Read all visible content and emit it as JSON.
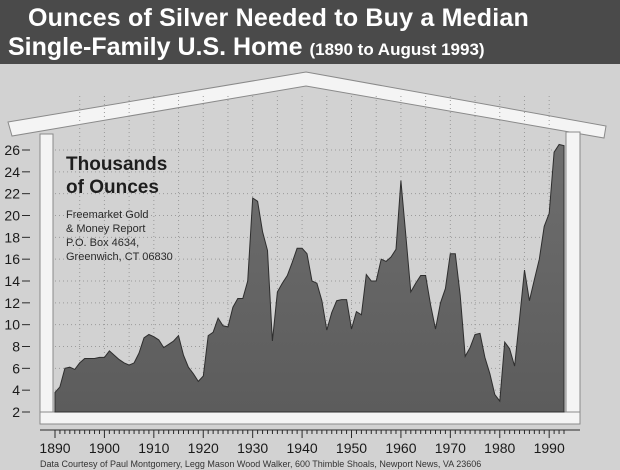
{
  "header": {
    "title_line1": "Ounces of Silver Needed to Buy a Median",
    "title_line2": "Single-Family U.S. Home",
    "title_period": "(1890 to August 1993)"
  },
  "units_label": [
    "Thousands",
    "of Ounces"
  ],
  "source_lines": [
    "Freemarket Gold",
    "& Money Report",
    "P.O. Box 4634,",
    "Greenwich, CT 06830"
  ],
  "credit": "Data Courtesy of Paul Montgomery, Legg Mason Wood Walker, 600 Thimble Shoals, Newport News, VA 23606",
  "chart_data": {
    "type": "area",
    "title": "Ounces of Silver Needed to Buy a Median Single-Family U.S. Home (1890 to August 1993)",
    "ylabel": "Thousands of Ounces",
    "xlabel": "",
    "ylim": [
      2,
      26
    ],
    "xlim": [
      1890,
      1993
    ],
    "y_ticks": [
      2,
      4,
      6,
      8,
      10,
      12,
      14,
      16,
      18,
      20,
      22,
      24,
      26
    ],
    "x_ticks": [
      1890,
      1900,
      1910,
      1920,
      1930,
      1940,
      1950,
      1960,
      1970,
      1980,
      1990
    ],
    "grid": true,
    "x": [
      1890,
      1891,
      1892,
      1893,
      1894,
      1895,
      1896,
      1897,
      1898,
      1899,
      1900,
      1901,
      1902,
      1903,
      1904,
      1905,
      1906,
      1907,
      1908,
      1909,
      1910,
      1911,
      1912,
      1913,
      1914,
      1915,
      1916,
      1917,
      1918,
      1919,
      1920,
      1921,
      1922,
      1923,
      1924,
      1925,
      1926,
      1927,
      1928,
      1929,
      1930,
      1931,
      1932,
      1933,
      1934,
      1935,
      1936,
      1937,
      1938,
      1939,
      1940,
      1941,
      1942,
      1943,
      1944,
      1945,
      1946,
      1947,
      1948,
      1949,
      1950,
      1951,
      1952,
      1953,
      1954,
      1955,
      1956,
      1957,
      1958,
      1959,
      1960,
      1961,
      1962,
      1963,
      1964,
      1965,
      1966,
      1967,
      1968,
      1969,
      1970,
      1971,
      1972,
      1973,
      1974,
      1975,
      1976,
      1977,
      1978,
      1979,
      1980,
      1981,
      1982,
      1983,
      1984,
      1985,
      1986,
      1987,
      1988,
      1989,
      1990,
      1991,
      1992,
      1993
    ],
    "values": [
      3.8,
      4.3,
      6.0,
      6.1,
      5.9,
      6.5,
      6.9,
      6.9,
      6.9,
      7.0,
      7.0,
      7.6,
      7.2,
      6.8,
      6.5,
      6.3,
      6.5,
      7.4,
      8.8,
      9.1,
      8.9,
      8.6,
      7.9,
      8.2,
      8.5,
      9.0,
      7.2,
      6.1,
      5.5,
      4.8,
      5.3,
      9.0,
      9.3,
      10.6,
      9.9,
      9.8,
      11.6,
      12.4,
      12.4,
      14.0,
      21.6,
      21.3,
      18.5,
      16.8,
      8.5,
      13.0,
      13.8,
      14.5,
      15.7,
      17.0,
      17.0,
      16.5,
      14.0,
      13.8,
      12.2,
      9.5,
      11.1,
      12.2,
      12.3,
      12.3,
      9.6,
      11.2,
      10.9,
      14.6,
      14.0,
      14.0,
      16.0,
      15.8,
      16.2,
      16.9,
      23.2,
      18.1,
      13.0,
      13.8,
      14.5,
      14.5,
      11.8,
      9.6,
      12.0,
      13.3,
      16.5,
      16.5,
      12.7,
      7.1,
      7.9,
      9.1,
      9.2,
      7.0,
      5.5,
      3.6,
      3.0,
      8.4,
      7.8,
      6.2,
      10.5,
      15.0,
      12.2,
      14.1,
      16.0,
      19.0,
      20.2,
      25.8,
      26.5,
      26.4
    ]
  }
}
